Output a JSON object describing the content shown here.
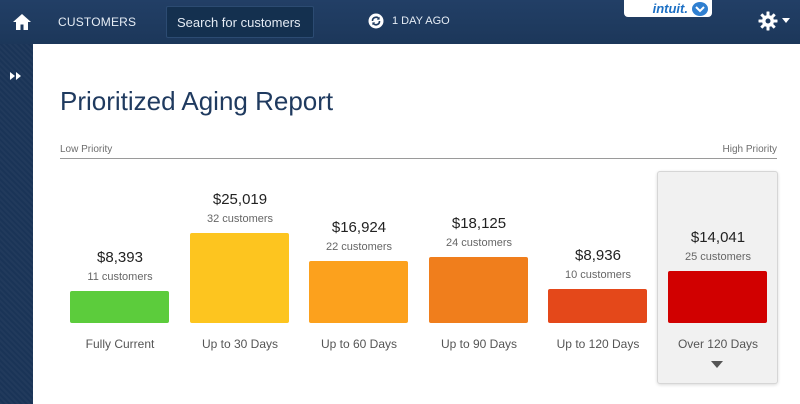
{
  "header": {
    "nav_customers": "CUSTOMERS",
    "search_placeholder": "Search for customers",
    "sync_text": "1 DAY AGO",
    "brand": "intuit."
  },
  "report": {
    "title": "Prioritized Aging Report",
    "low_priority": "Low Priority",
    "high_priority": "High Priority"
  },
  "colors": {
    "fully_current": "#5ccc3c",
    "up_to_30": "#fdc51f",
    "up_to_60": "#fca11d",
    "up_to_90": "#f07e1c",
    "up_to_120": "#e4481a",
    "over_120": "#d10000"
  },
  "buckets": [
    {
      "label": "Fully Current",
      "amount": "$8,393",
      "customers": "11 customers",
      "value": 8393
    },
    {
      "label": "Up to 30 Days",
      "amount": "$25,019",
      "customers": "32 customers",
      "value": 25019
    },
    {
      "label": "Up to 60 Days",
      "amount": "$16,924",
      "customers": "22 customers",
      "value": 16924
    },
    {
      "label": "Up to 90 Days",
      "amount": "$18,125",
      "customers": "24 customers",
      "value": 18125
    },
    {
      "label": "Up to 120 Days",
      "amount": "$8,936",
      "customers": "10 customers",
      "value": 8936
    },
    {
      "label": "Over 120 Days",
      "amount": "$14,041",
      "customers": "25 customers",
      "value": 14041,
      "selected": true
    }
  ]
}
